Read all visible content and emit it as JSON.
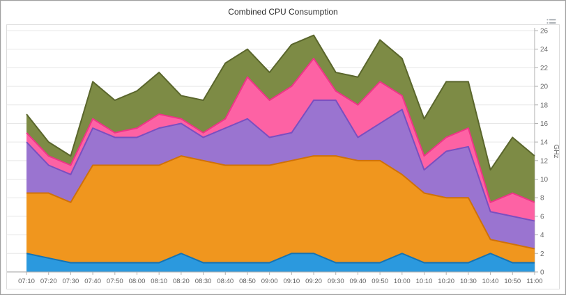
{
  "chart": {
    "title": "Combined CPU Consumption"
  },
  "icons": {
    "export_menu": "hamburger-menu-icon"
  },
  "chart_data": {
    "type": "area",
    "stacked": true,
    "title": "Combined CPU Consumption",
    "xlabel": "",
    "ylabel": "GHz",
    "ylim": [
      0,
      26
    ],
    "y_ticks": [
      0,
      2,
      4,
      6,
      8,
      10,
      12,
      14,
      16,
      18,
      20,
      22,
      24,
      26
    ],
    "grid": "horizontal",
    "grid_color": "#e7e7e7",
    "axis_color": "#b0b0b0",
    "legend_position": "none",
    "categories": [
      "07:10",
      "07:20",
      "07:30",
      "07:40",
      "07:50",
      "08:00",
      "08:10",
      "08:20",
      "08:30",
      "08:40",
      "08:50",
      "09:00",
      "09:10",
      "09:20",
      "09:30",
      "09:40",
      "09:50",
      "10:00",
      "10:10",
      "10:20",
      "10:30",
      "10:40",
      "10:50",
      "11:00"
    ],
    "series": [
      {
        "name": "blue",
        "color": "#2b99de",
        "border_color": "#1473b4",
        "values": [
          2,
          1.5,
          1,
          1,
          1,
          1,
          1,
          2,
          1,
          1,
          1,
          1,
          2,
          2,
          1,
          1,
          1,
          2,
          1,
          1,
          1,
          2,
          1,
          1
        ]
      },
      {
        "name": "orange",
        "color": "#f0961e",
        "border_color": "#cf7109",
        "values": [
          6.5,
          7,
          6.5,
          10.5,
          10.5,
          10.5,
          10.5,
          10.5,
          11,
          10.5,
          10.5,
          10.5,
          10,
          10.5,
          11.5,
          11,
          11,
          8.5,
          7.5,
          7,
          7,
          1.5,
          2,
          1.5
        ]
      },
      {
        "name": "purple",
        "color": "#9a74d0",
        "border_color": "#7a4fc0",
        "values": [
          5.5,
          3,
          3,
          4,
          3,
          3,
          4,
          3.5,
          2.5,
          4,
          5,
          3,
          3,
          6,
          6,
          2.5,
          4,
          7,
          2.5,
          5,
          5.5,
          3,
          3,
          3
        ]
      },
      {
        "name": "pink",
        "color": "#fd62a4",
        "border_color": "#ee3487",
        "values": [
          1,
          1,
          1,
          1,
          0.5,
          1,
          1.5,
          0.5,
          0.5,
          1,
          4.5,
          4,
          5,
          4.5,
          1,
          3.5,
          4.5,
          1.5,
          1.5,
          1.5,
          2,
          1,
          2.5,
          2
        ]
      },
      {
        "name": "olive",
        "color": "#7d8b45",
        "border_color": "#5a662c",
        "values": [
          2,
          1.5,
          1,
          4,
          3.5,
          4,
          4.5,
          2.5,
          3.5,
          6,
          3,
          3,
          4.5,
          2.5,
          2,
          3,
          4.5,
          4,
          4,
          6,
          5,
          3.5,
          6,
          5
        ]
      }
    ]
  }
}
